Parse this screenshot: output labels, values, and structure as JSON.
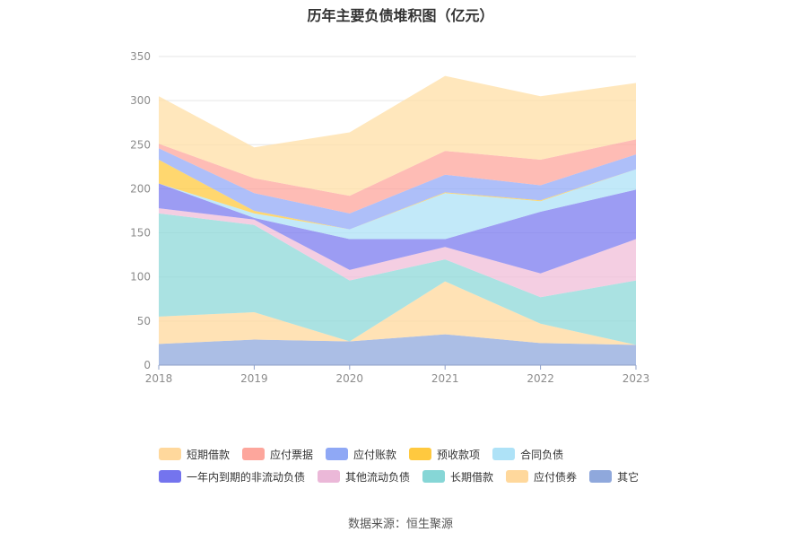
{
  "source": "数据来源：恒生聚源",
  "chart_data": {
    "type": "area",
    "stacked": true,
    "title": "历年主要负债堆积图（亿元）",
    "categories": [
      "2018",
      "2019",
      "2020",
      "2021",
      "2022",
      "2023"
    ],
    "y_ticks": [
      "0",
      "50",
      "100",
      "150",
      "200",
      "250",
      "300",
      "350"
    ],
    "ylim": [
      0,
      350
    ],
    "grid": true,
    "legend_position": "bottom",
    "series": [
      {
        "name": "其它",
        "color": "#8fa8dc",
        "values": [
          24,
          29,
          27,
          35,
          25,
          23
        ]
      },
      {
        "name": "应付债券",
        "color": "#ffd89c",
        "values": [
          31,
          31,
          0,
          60,
          22,
          0
        ]
      },
      {
        "name": "长期借款",
        "color": "#8dd8d8",
        "values": [
          117,
          99,
          69,
          25,
          30,
          73
        ]
      },
      {
        "name": "其他流动负债",
        "color": "#f0bdd8",
        "values": [
          6,
          6,
          12,
          14,
          27,
          47
        ]
      },
      {
        "name": "一年内到期的非流动负债",
        "color": "#7b7bef",
        "values": [
          28,
          2,
          35,
          9,
          70,
          56
        ]
      },
      {
        "name": "合同负债",
        "color": "#aee2f7",
        "values": [
          0,
          5,
          11,
          52,
          12,
          23
        ]
      },
      {
        "name": "预收款项",
        "color": "#ffc93f",
        "values": [
          27,
          3,
          0,
          1,
          1,
          0
        ]
      },
      {
        "name": "应付账款",
        "color": "#93a9f7",
        "values": [
          13,
          20,
          18,
          20,
          17,
          17
        ]
      },
      {
        "name": "应付票据",
        "color": "#fda69c",
        "values": [
          5,
          17,
          20,
          27,
          29,
          17
        ]
      },
      {
        "name": "短期借款",
        "color": "#ffdfa6",
        "values": [
          54,
          35,
          72,
          85,
          72,
          64
        ]
      }
    ],
    "legend": [
      {
        "name": "短期借款",
        "color": "#ffd89c"
      },
      {
        "name": "应付票据",
        "color": "#fda69c"
      },
      {
        "name": "应付账款",
        "color": "#8fa8f5"
      },
      {
        "name": "预收款项",
        "color": "#ffc93f"
      },
      {
        "name": "合同负债",
        "color": "#aee2f7"
      },
      {
        "name": "一年内到期的非流动负债",
        "color": "#7474ee"
      },
      {
        "name": "其他流动负债",
        "color": "#ebb8d8"
      },
      {
        "name": "长期借款",
        "color": "#86d6d6"
      },
      {
        "name": "应付债券",
        "color": "#ffd89c"
      },
      {
        "name": "其它",
        "color": "#8fa8dc"
      }
    ]
  }
}
